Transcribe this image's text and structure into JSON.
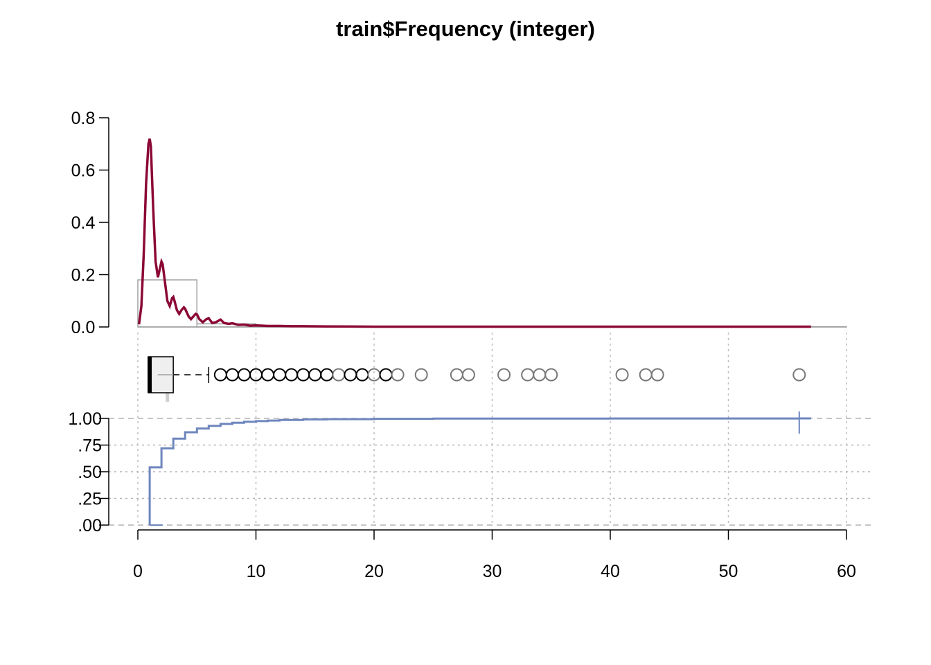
{
  "chart_data": {
    "title": "train$Frequency (integer)",
    "type": "density-boxplot-ecdf",
    "x_axis": {
      "ticks": [
        0,
        10,
        20,
        30,
        40,
        50,
        60
      ],
      "tick_labels": [
        "0",
        "10",
        "20",
        "30",
        "40",
        "50",
        "60"
      ],
      "range": [
        0,
        60
      ],
      "grid": true
    },
    "density_panel": {
      "type": "line",
      "y_ticks": [
        0,
        0.2,
        0.4,
        0.6,
        0.8
      ],
      "y_tick_labels": [
        "0.0",
        "0.2",
        "0.4",
        "0.6",
        "0.8"
      ],
      "ylim": [
        0,
        0.8
      ],
      "line_color": "#8b0836",
      "histogram_color": "#a0a0a0",
      "histogram": [
        {
          "x0": 0,
          "x1": 5,
          "y": 0.18
        },
        {
          "x0": 5,
          "x1": 10,
          "y": 0.012
        },
        {
          "x0": 10,
          "x1": 15,
          "y": 0.003
        },
        {
          "x0": 15,
          "x1": 60,
          "y": 0.001
        }
      ],
      "density": {
        "x": [
          0.1,
          0.3,
          0.5,
          0.7,
          0.9,
          1.0,
          1.1,
          1.3,
          1.5,
          1.7,
          1.9,
          2.0,
          2.1,
          2.3,
          2.5,
          2.7,
          2.9,
          3.0,
          3.1,
          3.3,
          3.5,
          3.7,
          3.9,
          4.0,
          4.1,
          4.3,
          4.5,
          4.7,
          4.9,
          5.0,
          5.2,
          5.5,
          5.8,
          6.0,
          6.3,
          6.6,
          7.0,
          7.3,
          7.7,
          8.0,
          8.5,
          9.0,
          9.5,
          10.0,
          11,
          12,
          13,
          14,
          16,
          20,
          30,
          40,
          50,
          57
        ],
        "y": [
          0.01,
          0.08,
          0.28,
          0.55,
          0.7,
          0.72,
          0.69,
          0.45,
          0.25,
          0.19,
          0.23,
          0.25,
          0.24,
          0.17,
          0.1,
          0.08,
          0.11,
          0.115,
          0.1,
          0.065,
          0.05,
          0.065,
          0.075,
          0.07,
          0.06,
          0.04,
          0.03,
          0.04,
          0.05,
          0.048,
          0.03,
          0.018,
          0.03,
          0.033,
          0.015,
          0.018,
          0.028,
          0.015,
          0.012,
          0.014,
          0.008,
          0.009,
          0.005,
          0.006,
          0.004,
          0.004,
          0.003,
          0.003,
          0.002,
          0.001,
          0.001,
          0.001,
          0.001,
          0.001
        ]
      }
    },
    "box_panel": {
      "type": "boxplot",
      "min": 1,
      "q1": 1,
      "median": 1,
      "mean": 2.5,
      "q3": 3,
      "whisker_high": 6,
      "outliers": [
        7,
        8,
        9,
        10,
        11,
        12,
        13,
        14,
        15,
        16,
        17,
        18,
        19,
        20,
        21,
        22,
        24,
        27,
        28,
        31,
        33,
        34,
        35,
        41,
        43,
        44,
        56
      ]
    },
    "ecdf_panel": {
      "type": "step",
      "y_ticks": [
        0,
        0.25,
        0.5,
        0.75,
        1.0
      ],
      "y_tick_labels": [
        ".00",
        ".25",
        ".50",
        ".75",
        "1.00"
      ],
      "ylim": [
        0,
        1
      ],
      "line_color": "#6e86bd",
      "x": [
        1,
        2,
        3,
        4,
        5,
        6,
        7,
        8,
        9,
        10,
        11,
        12,
        14,
        16,
        20,
        25,
        30,
        40,
        56
      ],
      "y": [
        0.54,
        0.72,
        0.81,
        0.87,
        0.905,
        0.93,
        0.948,
        0.96,
        0.968,
        0.975,
        0.98,
        0.985,
        0.99,
        0.993,
        0.996,
        0.998,
        0.999,
        0.9995,
        1.0
      ]
    }
  }
}
